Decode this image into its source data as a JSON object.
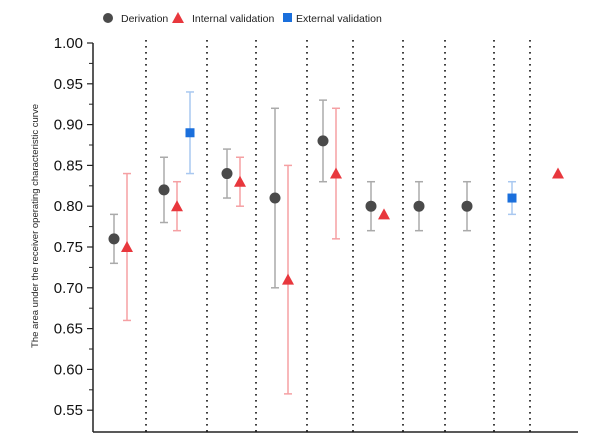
{
  "chart_data": {
    "type": "scatter",
    "title": "",
    "xlabel": "",
    "ylabel": "The area under the receiver operating characteristic curve",
    "ylim": [
      0.523,
      1.0
    ],
    "yticks": [
      "1.00",
      "0.95",
      "0.90",
      "0.85",
      "0.80",
      "0.75",
      "0.70",
      "0.65",
      "0.60",
      "0.55"
    ],
    "grid": false,
    "group_separators": "dotted vertical lines",
    "legend_position": "top",
    "groups": 10,
    "series": [
      {
        "name": "Derivation",
        "marker": "circle",
        "color": "#4a4a4a",
        "errcolor": "#aaaaaa",
        "points": [
          {
            "group": 1,
            "y": 0.76,
            "lo": 0.73,
            "hi": 0.79
          },
          {
            "group": 2,
            "y": 0.82,
            "lo": 0.78,
            "hi": 0.86
          },
          {
            "group": 3,
            "y": 0.84,
            "lo": 0.81,
            "hi": 0.87
          },
          {
            "group": 4,
            "y": 0.81,
            "lo": 0.7,
            "hi": 0.92
          },
          {
            "group": 5,
            "y": 0.88,
            "lo": 0.83,
            "hi": 0.93
          },
          {
            "group": 6,
            "y": 0.8,
            "lo": 0.77,
            "hi": 0.83
          },
          {
            "group": 7,
            "y": 0.8,
            "lo": 0.77,
            "hi": 0.83
          },
          {
            "group": 8,
            "y": 0.8,
            "lo": 0.77,
            "hi": 0.83
          }
        ]
      },
      {
        "name": "Internal validation",
        "marker": "triangle",
        "color": "#e8373d",
        "errcolor": "#f5a0a3",
        "points": [
          {
            "group": 1,
            "y": 0.75,
            "lo": 0.66,
            "hi": 0.84
          },
          {
            "group": 2,
            "y": 0.8,
            "lo": 0.77,
            "hi": 0.83
          },
          {
            "group": 3,
            "y": 0.83,
            "lo": 0.8,
            "hi": 0.86
          },
          {
            "group": 4,
            "y": 0.71,
            "lo": 0.57,
            "hi": 0.85
          },
          {
            "group": 5,
            "y": 0.84,
            "lo": 0.76,
            "hi": 0.92
          },
          {
            "group": 6,
            "y": 0.79
          },
          {
            "group": 10,
            "y": 0.84
          }
        ]
      },
      {
        "name": "External validation",
        "marker": "square",
        "color": "#1a6fdc",
        "errcolor": "#a9c8f0",
        "points": [
          {
            "group": 2,
            "y": 0.89,
            "lo": 0.84,
            "hi": 0.94
          },
          {
            "group": 9,
            "y": 0.81,
            "lo": 0.79,
            "hi": 0.83
          }
        ]
      }
    ]
  }
}
